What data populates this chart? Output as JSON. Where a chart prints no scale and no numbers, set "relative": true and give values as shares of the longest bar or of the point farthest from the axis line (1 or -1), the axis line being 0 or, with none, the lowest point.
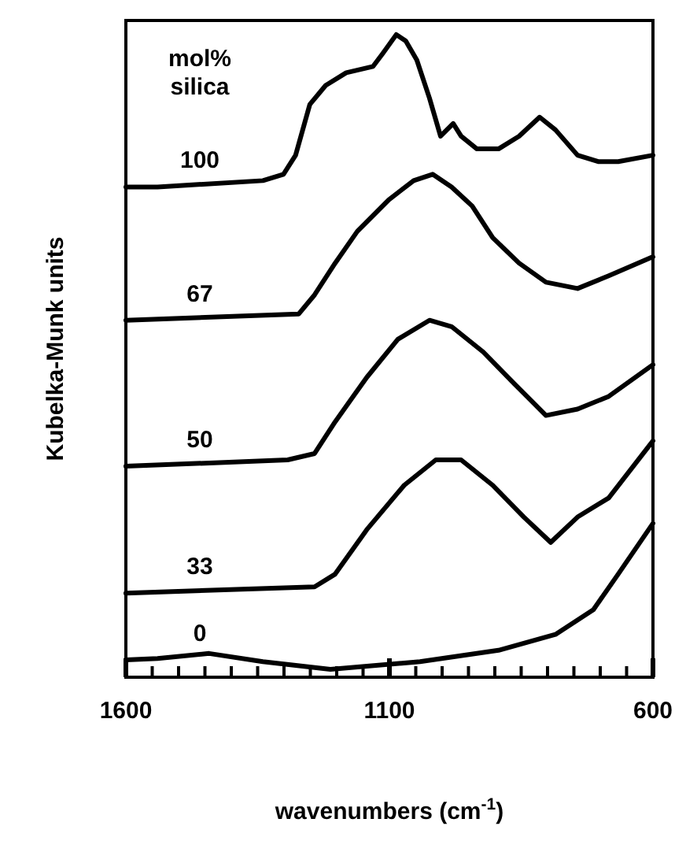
{
  "chart_data": {
    "type": "line",
    "relative": true,
    "xlabel": "wavenumbers (cm$^{-1}$)",
    "ylabel": "Kubelka-Munk units",
    "legend_title": "mol% silica",
    "xlim": [
      1600,
      600
    ],
    "xticks": [
      1600,
      {
        "value": 1550,
        "label": null
      },
      {
        "value": 1500,
        "label": null
      },
      {
        "value": 1450,
        "label": null
      },
      {
        "value": 1400,
        "label": null
      },
      {
        "value": 1350,
        "label": null
      },
      {
        "value": 1300,
        "label": null
      },
      {
        "value": 1250,
        "label": null
      },
      {
        "value": 1200,
        "label": null
      },
      {
        "value": 1150,
        "label": null
      },
      1100,
      {
        "value": 1050,
        "label": null
      },
      {
        "value": 1000,
        "label": null
      },
      {
        "value": 950,
        "label": null
      },
      {
        "value": 900,
        "label": null
      },
      {
        "value": 850,
        "label": null
      },
      {
        "value": 800,
        "label": null
      },
      {
        "value": 750,
        "label": null
      },
      {
        "value": 700,
        "label": null
      },
      {
        "value": 650,
        "label": null
      },
      600
    ],
    "tick_labels": "x",
    "grid": false,
    "marker": "none",
    "line_style": "solid",
    "series": [
      {
        "name": "100",
        "color": "#000000",
        "x": [
          1600,
          1540,
          1340,
          1301,
          1278,
          1251,
          1221,
          1182,
          1131,
          1113,
          1087,
          1069,
          1048,
          1024,
          1003,
          979,
          964,
          934,
          893,
          854,
          815,
          785,
          743,
          704,
          666,
          600
        ],
        "values": [
          0.76,
          0.76,
          0.77,
          0.78,
          0.81,
          0.89,
          0.92,
          0.94,
          0.95,
          0.97,
          1,
          0.99,
          0.96,
          0.9,
          0.84,
          0.86,
          0.84,
          0.82,
          0.82,
          0.84,
          0.87,
          0.85,
          0.81,
          0.8,
          0.8,
          0.81
        ]
      },
      {
        "name": "67",
        "color": "#000000",
        "x": [
          1600,
          1272,
          1242,
          1203,
          1161,
          1101,
          1054,
          1018,
          982,
          943,
          904,
          854,
          803,
          743,
          684,
          600
        ],
        "values": [
          0.55,
          0.56,
          0.59,
          0.64,
          0.69,
          0.74,
          0.77,
          0.78,
          0.76,
          0.73,
          0.68,
          0.64,
          0.61,
          0.6,
          0.62,
          0.65
        ]
      },
      {
        "name": "50",
        "color": "#000000",
        "x": [
          1600,
          1293,
          1242,
          1203,
          1143,
          1084,
          1024,
          982,
          922,
          863,
          803,
          743,
          684,
          600
        ],
        "values": [
          0.32,
          0.33,
          0.34,
          0.39,
          0.46,
          0.52,
          0.55,
          0.54,
          0.5,
          0.45,
          0.4,
          0.41,
          0.43,
          0.48
        ]
      },
      {
        "name": "33",
        "color": "#000000",
        "x": [
          1600,
          1242,
          1203,
          1143,
          1072,
          1012,
          964,
          904,
          845,
          794,
          743,
          684,
          600
        ],
        "values": [
          0.12,
          0.13,
          0.15,
          0.22,
          0.29,
          0.33,
          0.33,
          0.29,
          0.24,
          0.2,
          0.24,
          0.27,
          0.36
        ]
      },
      {
        "name": "0",
        "color": "#000000",
        "x": [
          1600,
          1540,
          1442,
          1340,
          1212,
          1042,
          893,
          785,
          713,
          666,
          600
        ],
        "values": [
          0.015,
          0.017,
          0.025,
          0.012,
          0,
          0.012,
          0.03,
          0.055,
          0.094,
          0.15,
          0.23
        ]
      }
    ]
  }
}
